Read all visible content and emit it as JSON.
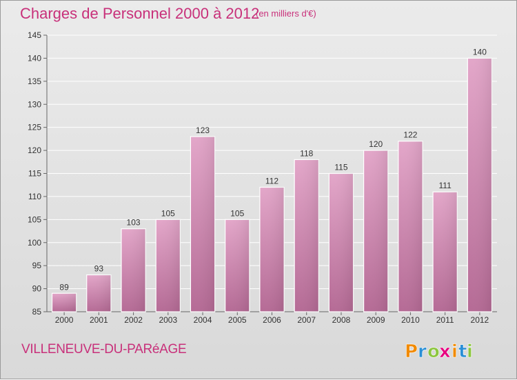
{
  "header": {
    "title": "Charges de Personnel 2000 à 2012",
    "subtitle": "(en milliers d'€)"
  },
  "footer": {
    "commune": "VILLENEUVE-DU-PARéAGE",
    "logo_text": "Proxiti",
    "logo_letters": [
      "P",
      "r",
      "o",
      "x",
      "i",
      "t",
      "i"
    ],
    "logo_colors": [
      "#f18a00",
      "#2a8fd6",
      "#8cc63f",
      "#e6007e",
      "#f18a00",
      "#2a8fd6",
      "#8cc63f"
    ]
  },
  "chart_data": {
    "type": "bar",
    "categories": [
      "2000",
      "2001",
      "2002",
      "2003",
      "2004",
      "2005",
      "2006",
      "2007",
      "2008",
      "2009",
      "2010",
      "2011",
      "2012"
    ],
    "values": [
      89,
      93,
      103,
      105,
      123,
      105,
      112,
      118,
      115,
      120,
      122,
      111,
      140
    ],
    "title": "Charges de Personnel 2000 à 2012",
    "subtitle": "(en milliers d'€)",
    "ylim": [
      85,
      145
    ],
    "yticks": [
      85,
      90,
      95,
      100,
      105,
      110,
      115,
      120,
      125,
      130,
      135,
      140,
      145
    ],
    "grid": true,
    "bar_color": "#d07aa8"
  }
}
